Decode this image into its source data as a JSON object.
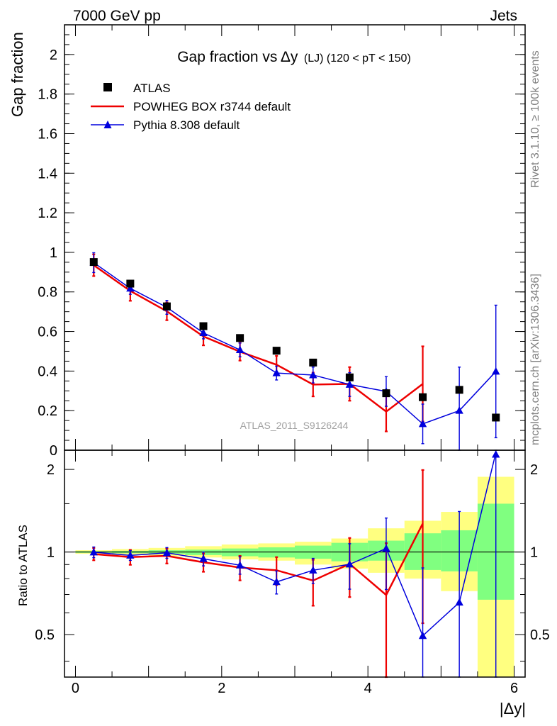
{
  "header": {
    "left": "7000 GeV pp",
    "right": "Jets"
  },
  "side_labels": {
    "rivet": "Rivet 3.1.10, ≥ 100k events",
    "mcplots": "mcplots.cern.ch [arXiv:1306.3436]"
  },
  "chart_data": [
    {
      "type": "scatter",
      "title": "Gap fraction vs",
      "title_delta": "Δy",
      "title_tail": "(LJ) (120 < pT < 150)",
      "ylabel": "Gap fraction",
      "xlim": [
        -0.15,
        6.15
      ],
      "ylim": [
        0,
        2.15
      ],
      "grid": false,
      "legend_position": "top-left",
      "watermark": "ATLAS_2011_S9126244",
      "y_ticks": [
        {
          "value": 0,
          "label": "0"
        },
        {
          "value": 0.2,
          "label": "0.2"
        },
        {
          "value": 0.4,
          "label": "0.4"
        },
        {
          "value": 0.6,
          "label": "0.6"
        },
        {
          "value": 0.8,
          "label": "0.8"
        },
        {
          "value": 1.0,
          "label": "1"
        },
        {
          "value": 1.2,
          "label": "1.2"
        },
        {
          "value": 1.4,
          "label": "1.4"
        },
        {
          "value": 1.6,
          "label": "1.6"
        },
        {
          "value": 1.8,
          "label": "1.8"
        },
        {
          "value": 2.0,
          "label": "2"
        }
      ],
      "series": [
        {
          "name": "ATLAS",
          "style": "markers",
          "color": "#000000",
          "x": [
            0.25,
            0.75,
            1.25,
            1.75,
            2.25,
            2.75,
            3.25,
            3.75,
            4.25,
            4.75,
            5.25,
            5.75
          ],
          "y": [
            0.951,
            0.842,
            0.727,
            0.627,
            0.567,
            0.503,
            0.443,
            0.368,
            0.288,
            0.268,
            0.305,
            0.165
          ]
        },
        {
          "name": "POWHEG BOX r3744 default",
          "style": "line",
          "color": "#ee0000",
          "x": [
            0.25,
            0.75,
            1.25,
            1.75,
            2.25,
            2.75,
            3.25,
            3.75,
            4.25,
            4.75
          ],
          "y": [
            0.935,
            0.805,
            0.702,
            0.575,
            0.498,
            0.432,
            0.332,
            0.335,
            0.195,
            0.335
          ],
          "err": [
            0.055,
            0.05,
            0.045,
            0.045,
            0.045,
            0.045,
            0.06,
            0.085,
            0.1,
            0.19
          ]
        },
        {
          "name": "Pythia 8.308 default",
          "style": "line-triangles",
          "color": "#0000dd",
          "x": [
            0.25,
            0.75,
            1.25,
            1.75,
            2.25,
            2.75,
            3.25,
            3.75,
            4.25,
            4.75,
            5.25,
            5.75
          ],
          "y": [
            0.948,
            0.818,
            0.722,
            0.593,
            0.507,
            0.39,
            0.38,
            0.332,
            0.297,
            0.133,
            0.2,
            0.398
          ],
          "err": [
            0.05,
            0.03,
            0.035,
            0.03,
            0.035,
            0.035,
            0.04,
            0.06,
            0.075,
            0.1,
            0.22,
            0.335
          ]
        }
      ]
    },
    {
      "type": "scatter",
      "ylabel": "Ratio to ATLAS",
      "xlabel": "|Δy|",
      "xlim": [
        -0.15,
        6.15
      ],
      "ylim": [
        0.35,
        2.35
      ],
      "y_scale": "log",
      "reference_line": 1,
      "x_ticks": [
        {
          "value": 0,
          "label": "0"
        },
        {
          "value": 2,
          "label": "2"
        },
        {
          "value": 4,
          "label": "4"
        },
        {
          "value": 6,
          "label": "6"
        }
      ],
      "y_ticks": [
        {
          "value": 0.5,
          "label": "0.5"
        },
        {
          "value": 1,
          "label": "1"
        },
        {
          "value": 2,
          "label": "2"
        }
      ],
      "bands": {
        "bin_edges": [
          0,
          0.5,
          1,
          1.5,
          2,
          2.5,
          3,
          3.5,
          4,
          4.5,
          5,
          5.5,
          6
        ],
        "total_uncertainty": {
          "color": "#ffff80",
          "lo": [
            0.985,
            0.975,
            0.965,
            0.955,
            0.94,
            0.93,
            0.9,
            0.87,
            0.84,
            0.8,
            0.72,
            0.34
          ],
          "hi": [
            1.015,
            1.025,
            1.035,
            1.05,
            1.065,
            1.075,
            1.09,
            1.12,
            1.22,
            1.3,
            1.4,
            1.88
          ]
        },
        "stat_uncertainty": {
          "color": "#80ff80",
          "lo": [
            0.993,
            0.99,
            0.985,
            0.975,
            0.965,
            0.955,
            0.945,
            0.925,
            0.93,
            0.86,
            0.85,
            0.67
          ],
          "hi": [
            1.007,
            1.01,
            1.015,
            1.02,
            1.03,
            1.04,
            1.055,
            1.08,
            1.1,
            1.17,
            1.2,
            1.5
          ]
        }
      },
      "series": [
        {
          "name": "POWHEG BOX r3744 default",
          "color": "#ee0000",
          "x": [
            0.25,
            0.75,
            1.25,
            1.75,
            2.25,
            2.75,
            3.25,
            3.75,
            4.25,
            4.75
          ],
          "y": [
            0.983,
            0.958,
            0.968,
            0.917,
            0.878,
            0.858,
            0.787,
            0.905,
            0.697,
            1.27
          ],
          "err": [
            0.05,
            0.06,
            0.06,
            0.07,
            0.09,
            0.1,
            0.15,
            0.22,
            0.38,
            0.72
          ]
        },
        {
          "name": "Pythia 8.308 default",
          "color": "#0000dd",
          "x": [
            0.25,
            0.75,
            1.25,
            1.75,
            2.25,
            2.75,
            3.25,
            3.75,
            4.25,
            4.75,
            5.25,
            5.75
          ],
          "y": [
            0.998,
            0.972,
            0.993,
            0.945,
            0.895,
            0.778,
            0.858,
            0.902,
            1.03,
            0.495,
            0.655,
            2.3
          ],
          "err": [
            0.045,
            0.04,
            0.045,
            0.055,
            0.065,
            0.075,
            0.09,
            0.17,
            0.3,
            0.38,
            0.75,
            2.0
          ]
        }
      ]
    }
  ]
}
